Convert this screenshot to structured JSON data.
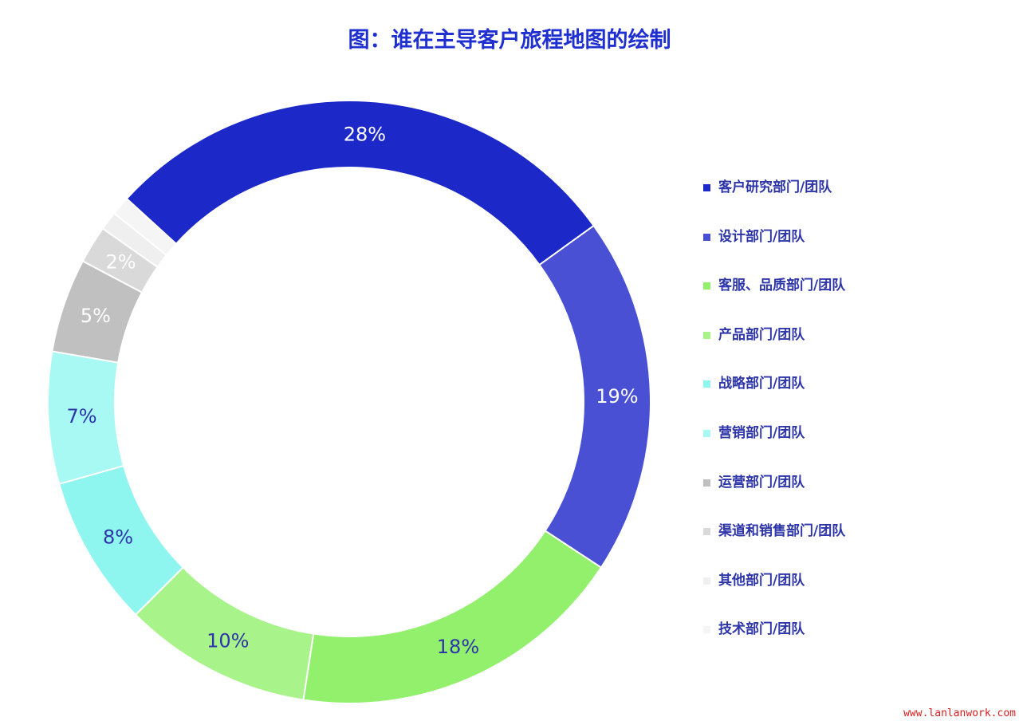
{
  "chart_data": {
    "type": "pie",
    "donut": true,
    "title": "图：谁在主导客户旅程地图的绘制",
    "legend_position": "right",
    "categories": [
      "客户研究部门/团队",
      "设计部门/团队",
      "客服、品质部门/团队",
      "产品部门/团队",
      "战略部门/团队",
      "营销部门/团队",
      "运营部门/团队",
      "渠道和销售部门/团队",
      "其他部门/团队",
      "技术部门/团队"
    ],
    "values": [
      28,
      19,
      18,
      10,
      8,
      7,
      5,
      2,
      1,
      1
    ],
    "labels": [
      "28%",
      "19%",
      "18%",
      "10%",
      "8%",
      "7%",
      "5%",
      "2%",
      "",
      ""
    ],
    "colors": [
      "#1c28c8",
      "#4a50d4",
      "#92f06c",
      "#a8f38a",
      "#8ff5ef",
      "#a8f8f3",
      "#c0c0c0",
      "#d9d9d9",
      "#efefef",
      "#f5f5f5"
    ],
    "label_colors": [
      "#ffffff",
      "#ffffff",
      "#2d35a8",
      "#2d35a8",
      "#2d35a8",
      "#2d35a8",
      "#ffffff",
      "#ffffff",
      "#ffffff",
      "#ffffff"
    ]
  },
  "watermark": "www.lanlanwork.com"
}
